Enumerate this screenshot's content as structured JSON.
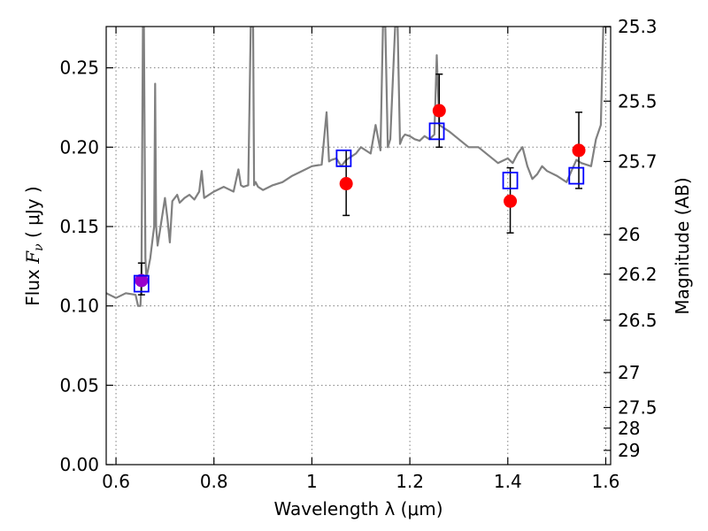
{
  "chart_data": {
    "type": "scatter",
    "title": "",
    "xlabel": "Wavelength  λ (μm)",
    "ylabel_left": {
      "pre": "Flux  ",
      "var": "F",
      "sub": "ν",
      "post": "  ( μJy )"
    },
    "ylabel_right": "Magnitude (AB)",
    "xlim": [
      0.58,
      1.61
    ],
    "ylim": [
      0.0,
      0.276
    ],
    "xticks": [
      "0.6",
      "0.8",
      "1",
      "1.2",
      "1.4",
      "1.6"
    ],
    "xtick_values": [
      0.6,
      0.8,
      1.0,
      1.2,
      1.4,
      1.6
    ],
    "yticks": [
      "0.00",
      "0.05",
      "0.10",
      "0.15",
      "0.20",
      "0.25"
    ],
    "ytick_values": [
      0.0,
      0.05,
      0.1,
      0.15,
      0.2,
      0.25
    ],
    "right_ticks": [
      {
        "label": "25.3",
        "flux": 0.276
      },
      {
        "label": "25.5",
        "flux": 0.229
      },
      {
        "label": "25.7",
        "flux": 0.191
      },
      {
        "label": "26",
        "flux": 0.145
      },
      {
        "label": "26.2",
        "flux": 0.12
      },
      {
        "label": "26.5",
        "flux": 0.091
      },
      {
        "label": "27",
        "flux": 0.058
      },
      {
        "label": "27.5",
        "flux": 0.036
      },
      {
        "label": "28",
        "flux": 0.023
      },
      {
        "label": "29",
        "flux": 0.009
      }
    ],
    "grid": true,
    "series": [
      {
        "kind": "line",
        "color": "#808080",
        "x": [
          0.58,
          0.6,
          0.62,
          0.64,
          0.645,
          0.65,
          0.652,
          0.655,
          0.657,
          0.66,
          0.662,
          0.665,
          0.67,
          0.675,
          0.678,
          0.68,
          0.682,
          0.685,
          0.69,
          0.7,
          0.705,
          0.71,
          0.715,
          0.72,
          0.725,
          0.73,
          0.74,
          0.75,
          0.76,
          0.77,
          0.775,
          0.78,
          0.79,
          0.8,
          0.82,
          0.84,
          0.85,
          0.855,
          0.86,
          0.87,
          0.875,
          0.878,
          0.88,
          0.882,
          0.885,
          0.89,
          0.9,
          0.92,
          0.94,
          0.96,
          0.98,
          1.0,
          1.02,
          1.03,
          1.035,
          1.04,
          1.05,
          1.06,
          1.07,
          1.08,
          1.09,
          1.1,
          1.12,
          1.13,
          1.14,
          1.145,
          1.15,
          1.155,
          1.16,
          1.17,
          1.175,
          1.18,
          1.185,
          1.19,
          1.2,
          1.21,
          1.22,
          1.23,
          1.24,
          1.25,
          1.255,
          1.26,
          1.27,
          1.28,
          1.3,
          1.32,
          1.34,
          1.36,
          1.38,
          1.4,
          1.41,
          1.42,
          1.43,
          1.44,
          1.45,
          1.46,
          1.47,
          1.48,
          1.5,
          1.52,
          1.53,
          1.54,
          1.55,
          1.57,
          1.58,
          1.59,
          1.595,
          1.6,
          1.61
        ],
        "y": [
          0.108,
          0.105,
          0.108,
          0.107,
          0.1,
          0.1,
          0.115,
          0.276,
          0.276,
          0.13,
          0.118,
          0.122,
          0.13,
          0.143,
          0.15,
          0.24,
          0.15,
          0.138,
          0.148,
          0.168,
          0.155,
          0.14,
          0.166,
          0.168,
          0.17,
          0.165,
          0.168,
          0.17,
          0.167,
          0.172,
          0.185,
          0.168,
          0.17,
          0.172,
          0.175,
          0.172,
          0.186,
          0.176,
          0.175,
          0.176,
          0.276,
          0.276,
          0.276,
          0.176,
          0.178,
          0.175,
          0.173,
          0.176,
          0.178,
          0.182,
          0.185,
          0.188,
          0.189,
          0.222,
          0.191,
          0.192,
          0.193,
          0.188,
          0.192,
          0.194,
          0.196,
          0.2,
          0.196,
          0.214,
          0.198,
          0.276,
          0.276,
          0.2,
          0.205,
          0.276,
          0.276,
          0.202,
          0.206,
          0.208,
          0.207,
          0.205,
          0.204,
          0.207,
          0.205,
          0.208,
          0.258,
          0.214,
          0.212,
          0.21,
          0.205,
          0.2,
          0.2,
          0.195,
          0.19,
          0.193,
          0.19,
          0.196,
          0.2,
          0.188,
          0.18,
          0.183,
          0.188,
          0.185,
          0.182,
          0.178,
          0.185,
          0.192,
          0.19,
          0.188,
          0.205,
          0.214,
          0.276,
          0.276,
          0.276
        ]
      },
      {
        "kind": "markers",
        "marker": "circle",
        "color": "#ff0000",
        "x": [
          1.07,
          1.26,
          1.405,
          1.545
        ],
        "y": [
          0.177,
          0.223,
          0.166,
          0.198
        ],
        "yerr_low": [
          0.157,
          0.2,
          0.146,
          0.174
        ],
        "yerr_high": [
          0.198,
          0.246,
          0.187,
          0.222
        ]
      },
      {
        "kind": "markers",
        "marker": "circle",
        "color": "#9900cc",
        "x": [
          0.652
        ],
        "y": [
          0.116
        ],
        "yerr_low": [
          0.107
        ],
        "yerr_high": [
          0.127
        ]
      },
      {
        "kind": "markers",
        "marker": "open-square",
        "color": "#0000ff",
        "x": [
          0.652,
          1.065,
          1.255,
          1.405,
          1.54
        ],
        "y": [
          0.114,
          0.193,
          0.21,
          0.179,
          0.182
        ]
      }
    ]
  }
}
